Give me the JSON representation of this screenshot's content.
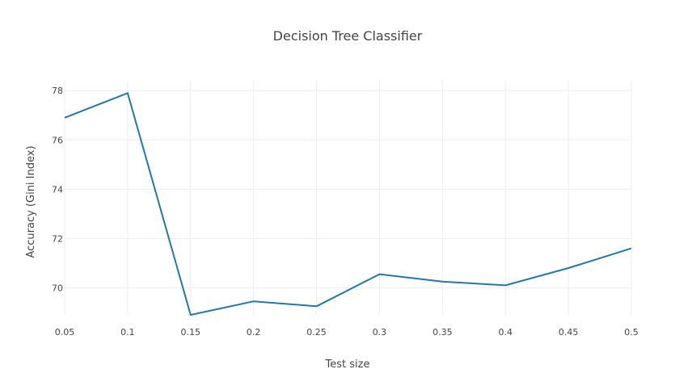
{
  "chart_data": {
    "type": "line",
    "title": "Decision Tree Classifier",
    "xlabel": "Test size",
    "ylabel": "Accuracy (Gini Index)",
    "x": [
      0.05,
      0.1,
      0.15,
      0.2,
      0.25,
      0.3,
      0.35,
      0.4,
      0.45,
      0.5
    ],
    "x_tick_labels": [
      "0.05",
      "0.1",
      "0.15",
      "0.2",
      "0.25",
      "0.3",
      "0.35",
      "0.4",
      "0.45",
      "0.5"
    ],
    "y_ticks": [
      70,
      72,
      74,
      76,
      78
    ],
    "y_tick_labels": [
      "70",
      "72",
      "74",
      "76",
      "78"
    ],
    "xlim": [
      0.05,
      0.5
    ],
    "ylim": [
      68.9,
      78.4
    ],
    "grid": true,
    "series": [
      {
        "values": [
          76.9,
          77.9,
          68.9,
          69.45,
          69.25,
          70.55,
          70.25,
          70.1,
          70.8,
          71.6
        ],
        "color": "#1f77b4"
      }
    ]
  }
}
